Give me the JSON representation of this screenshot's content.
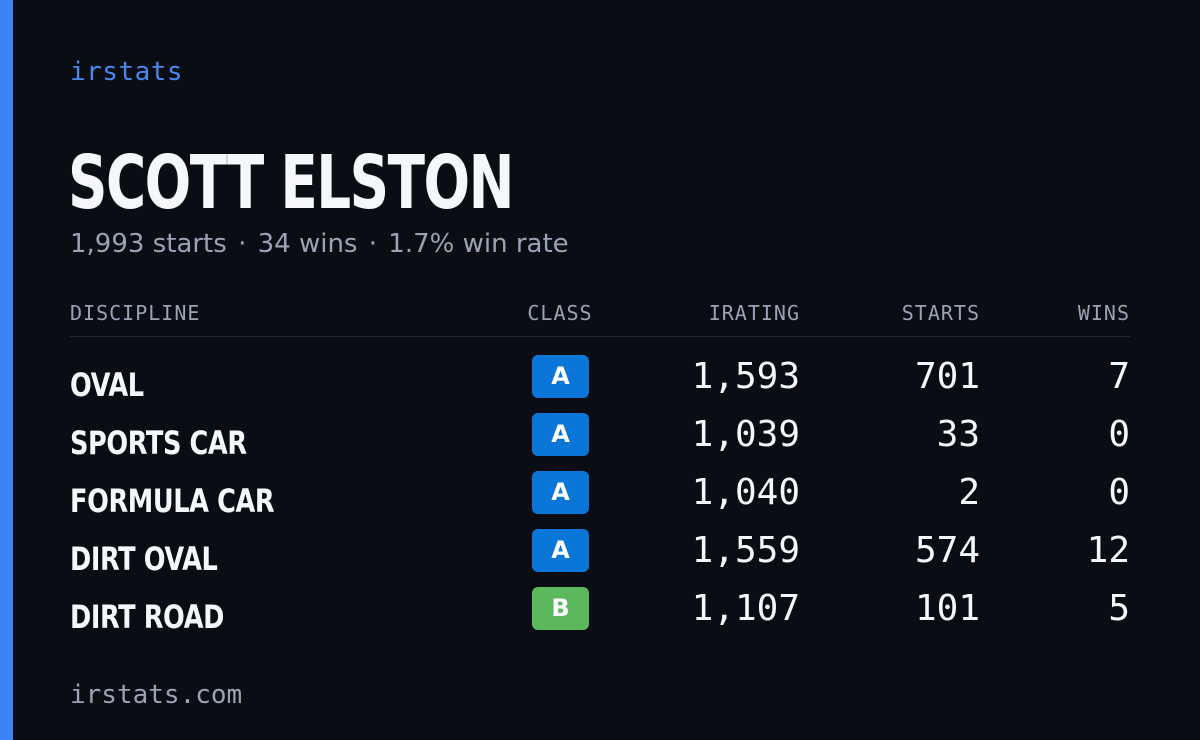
{
  "brand": "irstats",
  "driver": {
    "name": "SCOTT ELSTON",
    "summary": {
      "starts": "1,993 starts",
      "wins": "34 wins",
      "win_rate": "1.7% win rate",
      "separator": "·"
    }
  },
  "table": {
    "headers": {
      "discipline": "DISCIPLINE",
      "class": "CLASS",
      "irating": "IRATING",
      "starts": "STARTS",
      "wins": "WINS"
    },
    "rows": [
      {
        "discipline": "OVAL",
        "class": "A",
        "class_color": "#0a76d8",
        "irating": "1,593",
        "starts": "701",
        "wins": "7"
      },
      {
        "discipline": "SPORTS CAR",
        "class": "A",
        "class_color": "#0a76d8",
        "irating": "1,039",
        "starts": "33",
        "wins": "0"
      },
      {
        "discipline": "FORMULA CAR",
        "class": "A",
        "class_color": "#0a76d8",
        "irating": "1,040",
        "starts": "2",
        "wins": "0"
      },
      {
        "discipline": "DIRT OVAL",
        "class": "A",
        "class_color": "#0a76d8",
        "irating": "1,559",
        "starts": "574",
        "wins": "12"
      },
      {
        "discipline": "DIRT ROAD",
        "class": "B",
        "class_color": "#5cb85c",
        "irating": "1,107",
        "starts": "101",
        "wins": "5"
      }
    ]
  },
  "footer": "irstats.com",
  "colors": {
    "background": "#0a0d14",
    "accent": "#3b82f6",
    "brand_text": "#4a88f0",
    "muted_text": "#9aa3b5",
    "class_a": "#0a76d8",
    "class_b": "#5cb85c"
  }
}
